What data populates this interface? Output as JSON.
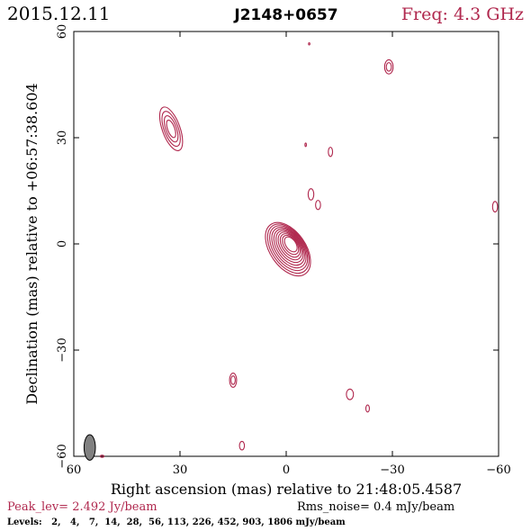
{
  "header": {
    "date": "2015.12.11",
    "source": "J2148+0657",
    "freq": "Freq: 4.3 GHz"
  },
  "footer": {
    "peak": "Peak_lev=  2.492 Jy/beam",
    "rms": "Rms_noise=  0.4 mJy/beam",
    "levels": "Levels:   2,   4,   7,  14,  28,  56, 113, 226, 452, 903, 1806 mJy/beam"
  },
  "colors": {
    "contour": "#b0284e",
    "axis": "#000000",
    "beam": "#808080"
  },
  "chart_data": {
    "type": "contour",
    "xlabel": "Right ascension (mas) relative to 21:48:05.4587",
    "ylabel": "Declination (mas) relative to +06:57:38.604",
    "xlim": [
      60,
      -60
    ],
    "ylim": [
      -60,
      60
    ],
    "xticks": [
      60,
      30,
      0,
      -30,
      -60
    ],
    "yticks": [
      -60,
      -30,
      0,
      30,
      60
    ],
    "grid": false,
    "levels_mJy": [
      2,
      4,
      7,
      14,
      28,
      56,
      113,
      226,
      452,
      903,
      1806
    ],
    "peak_Jy_per_beam": 2.492,
    "rms_noise_mJy_per_beam": 0.4,
    "components": [
      {
        "name": "core",
        "x": -0.5,
        "y": -1.5,
        "rx": 5.0,
        "ry": 8.5,
        "angle": -35,
        "n_contours": 10
      },
      {
        "name": "jet-knot",
        "x": 32.5,
        "y": 32.5,
        "rx": 2.5,
        "ry": 6.5,
        "angle": -20,
        "n_contours": 4
      },
      {
        "name": "spot-1",
        "x": -29.0,
        "y": 50.0,
        "rx": 1.2,
        "ry": 2.0,
        "angle": 0,
        "n_contours": 2
      },
      {
        "name": "spot-2",
        "x": -7.0,
        "y": 14.0,
        "rx": 0.8,
        "ry": 1.6,
        "angle": 0,
        "n_contours": 1
      },
      {
        "name": "spot-3",
        "x": -9.0,
        "y": 11.0,
        "rx": 0.7,
        "ry": 1.3,
        "angle": 0,
        "n_contours": 1
      },
      {
        "name": "spot-4",
        "x": -12.5,
        "y": 26.0,
        "rx": 0.6,
        "ry": 1.3,
        "angle": 0,
        "n_contours": 1
      },
      {
        "name": "spot-5",
        "x": -59.0,
        "y": 10.5,
        "rx": 0.7,
        "ry": 1.5,
        "angle": 0,
        "n_contours": 1
      },
      {
        "name": "spot-6",
        "x": 15.0,
        "y": -38.5,
        "rx": 1.0,
        "ry": 2.0,
        "angle": 0,
        "n_contours": 2
      },
      {
        "name": "spot-7",
        "x": -18.0,
        "y": -42.5,
        "rx": 1.0,
        "ry": 1.5,
        "angle": 0,
        "n_contours": 1
      },
      {
        "name": "spot-8",
        "x": -23.0,
        "y": -46.5,
        "rx": 0.5,
        "ry": 1.0,
        "angle": 0,
        "n_contours": 1
      },
      {
        "name": "spot-9",
        "x": 12.5,
        "y": -57.0,
        "rx": 0.7,
        "ry": 1.2,
        "angle": 0,
        "n_contours": 1
      },
      {
        "name": "spot-10",
        "x": -6.5,
        "y": 56.5,
        "rx": 0.2,
        "ry": 0.3,
        "angle": 0,
        "n_contours": 1
      },
      {
        "name": "spot-11",
        "x": -5.5,
        "y": 28.0,
        "rx": 0.2,
        "ry": 0.5,
        "angle": 0,
        "n_contours": 1
      },
      {
        "name": "spot-12",
        "x": 52.0,
        "y": -60.0,
        "rx": 0.5,
        "ry": 0.3,
        "angle": 0,
        "n_contours": 1
      }
    ],
    "beam": {
      "x": 55.5,
      "y": -57.5,
      "rx": 1.6,
      "ry": 3.6,
      "angle": 0
    }
  }
}
